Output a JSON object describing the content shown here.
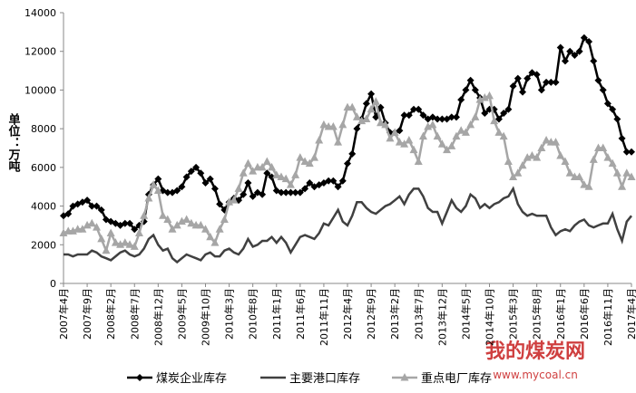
{
  "chart_data": {
    "type": "line",
    "y_label": "单位：万吨",
    "categories": [
      "2007年4月",
      null,
      null,
      null,
      null,
      "2007年9月",
      null,
      null,
      null,
      null,
      "2008年2月",
      null,
      null,
      null,
      null,
      "2008年7月",
      null,
      null,
      null,
      null,
      "2008年12月",
      null,
      null,
      null,
      null,
      "2009年5月",
      null,
      null,
      null,
      null,
      "2009年10月",
      null,
      null,
      null,
      null,
      "2010年3月",
      null,
      null,
      null,
      null,
      "2010年8月",
      null,
      null,
      null,
      null,
      "2011年1月",
      null,
      null,
      null,
      null,
      "2011年6月",
      null,
      null,
      null,
      null,
      "2011年11月",
      null,
      null,
      null,
      null,
      "2012年4月",
      null,
      null,
      null,
      null,
      "2012年9月",
      null,
      null,
      null,
      null,
      "2013年2月",
      null,
      null,
      null,
      null,
      "2013年7月",
      null,
      null,
      null,
      null,
      "2013年12月",
      null,
      null,
      null,
      null,
      "2014年5月",
      null,
      null,
      null,
      null,
      "2014年10月",
      null,
      null,
      null,
      null,
      "2015年3月",
      null,
      null,
      null,
      null,
      "2015年8月",
      null,
      null,
      null,
      null,
      "2016年1月",
      null,
      null,
      null,
      null,
      "2016年6月",
      null,
      null,
      null,
      null,
      "2016年11月",
      null,
      null,
      null,
      null,
      "2017年4月"
    ],
    "series": [
      {
        "name": "煤炭企业库存",
        "color": "#000000",
        "marker": "diamond",
        "values": [
          3500,
          3600,
          4000,
          4100,
          4200,
          4300,
          4000,
          4000,
          3800,
          3300,
          3200,
          3100,
          3000,
          3100,
          3100,
          2800,
          3000,
          3200,
          4600,
          5100,
          5400,
          4800,
          4700,
          4700,
          4800,
          5000,
          5500,
          5800,
          6000,
          5700,
          5200,
          5400,
          4900,
          4100,
          3800,
          4200,
          4400,
          4300,
          4600,
          5200,
          4500,
          4700,
          4600,
          5700,
          5500,
          4800,
          4700,
          4700,
          4700,
          4700,
          4700,
          4900,
          5200,
          5000,
          5100,
          5200,
          5300,
          5300,
          5000,
          5300,
          6200,
          6700,
          8000,
          8500,
          9300,
          9800,
          8600,
          9100,
          8300,
          7800,
          7800,
          7900,
          8700,
          8700,
          9000,
          9000,
          8700,
          8500,
          8600,
          8500,
          8500,
          8500,
          8600,
          8600,
          9500,
          10000,
          10500,
          10000,
          9600,
          8800,
          9000,
          9000,
          8500,
          8800,
          9000,
          10200,
          10600,
          9900,
          10600,
          10900,
          10800,
          10000,
          10400,
          10400,
          10400,
          12200,
          11500,
          12000,
          11800,
          12000,
          12700,
          12500,
          11500,
          10500,
          10000,
          9300,
          9000,
          8500,
          7500,
          6800,
          6800
        ]
      },
      {
        "name": "主要港口库存",
        "color": "#404040",
        "marker": "none",
        "values": [
          1500,
          1500,
          1400,
          1500,
          1500,
          1500,
          1700,
          1600,
          1400,
          1300,
          1200,
          1400,
          1600,
          1700,
          1500,
          1400,
          1500,
          1800,
          2300,
          2500,
          2000,
          1700,
          1800,
          1300,
          1100,
          1300,
          1500,
          1400,
          1300,
          1200,
          1500,
          1600,
          1400,
          1400,
          1700,
          1800,
          1600,
          1500,
          1800,
          2300,
          1900,
          2000,
          2200,
          2200,
          2400,
          2100,
          2400,
          2100,
          1600,
          2000,
          2400,
          2500,
          2400,
          2300,
          2600,
          3100,
          3000,
          3400,
          3800,
          3200,
          3000,
          3500,
          4200,
          4200,
          3900,
          3700,
          3600,
          3800,
          4000,
          4100,
          4300,
          4500,
          4100,
          4600,
          4900,
          4900,
          4500,
          3900,
          3700,
          3700,
          3100,
          3700,
          4300,
          3900,
          3700,
          4000,
          4600,
          4400,
          3900,
          4100,
          3900,
          4100,
          4200,
          4400,
          4500,
          4900,
          4100,
          3700,
          3500,
          3600,
          3500,
          3500,
          3500,
          2900,
          2500,
          2700,
          2800,
          2700,
          3000,
          3200,
          3300,
          3000,
          2900,
          3000,
          3100,
          3100,
          3600,
          2800,
          2200,
          3200,
          3500
        ]
      },
      {
        "name": "重点电厂库存",
        "color": "#a6a6a6",
        "marker": "triangle",
        "values": [
          2600,
          2700,
          2700,
          2800,
          2800,
          3000,
          3100,
          2900,
          2300,
          1700,
          2600,
          2100,
          2000,
          2100,
          2000,
          1900,
          2600,
          3500,
          4400,
          5100,
          4800,
          3500,
          3300,
          2800,
          3000,
          3200,
          3300,
          3100,
          3000,
          3000,
          2800,
          2400,
          2100,
          2800,
          3300,
          4200,
          4300,
          4900,
          5700,
          6200,
          5800,
          6000,
          6000,
          6300,
          6000,
          5600,
          5500,
          5400,
          5100,
          5600,
          6500,
          6300,
          6200,
          6500,
          7400,
          8200,
          8100,
          8100,
          7300,
          8200,
          9100,
          9100,
          8600,
          8400,
          8500,
          9000,
          9400,
          8300,
          8200,
          7500,
          7800,
          7300,
          7200,
          7400,
          6900,
          6300,
          7600,
          8100,
          8200,
          7600,
          7200,
          6900,
          7100,
          7600,
          7900,
          7800,
          8200,
          8600,
          9500,
          9600,
          9700,
          8400,
          7800,
          7600,
          6300,
          5500,
          5700,
          6100,
          6500,
          6600,
          6500,
          7000,
          7400,
          7300,
          7300,
          6600,
          6300,
          5700,
          5500,
          5500,
          5100,
          5000,
          6400,
          7000,
          7000,
          6500,
          6200,
          5700,
          5000,
          5700,
          5500
        ]
      }
    ],
    "ylim": [
      0,
      14000
    ],
    "yticks": [
      0,
      2000,
      4000,
      6000,
      8000,
      10000,
      12000,
      14000
    ],
    "grid": false,
    "legend": "bottom",
    "watermark": {
      "title": "我的煤炭网",
      "url": "www.mycoal.cn"
    }
  }
}
